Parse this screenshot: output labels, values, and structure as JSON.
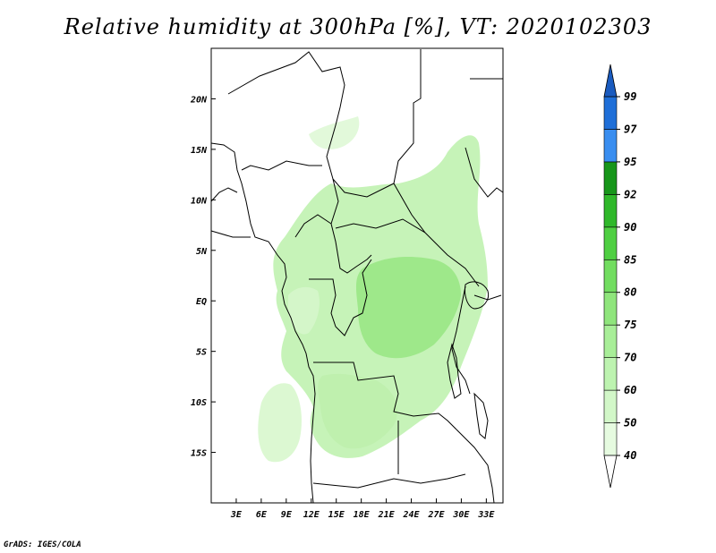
{
  "title": "Relative humidity at 300hPa [%], VT: 2020102303",
  "credit": "GrADS: IGES/COLA",
  "map": {
    "lon_range": [
      0,
      35
    ],
    "lat_range": [
      -20,
      25
    ],
    "lon_ticks": [
      "3E",
      "6E",
      "9E",
      "12E",
      "15E",
      "18E",
      "21E",
      "24E",
      "27E",
      "30E",
      "33E"
    ],
    "lat_ticks": [
      "20N",
      "15N",
      "10N",
      "5N",
      "EQ",
      "5S",
      "10S",
      "15S"
    ],
    "lon_tick_values": [
      3,
      6,
      9,
      12,
      15,
      18,
      21,
      24,
      27,
      30,
      33
    ],
    "lat_tick_values": [
      20,
      15,
      10,
      5,
      0,
      -5,
      -10,
      -15
    ]
  },
  "colorbar": {
    "levels": [
      "40",
      "50",
      "60",
      "70",
      "75",
      "80",
      "85",
      "90",
      "92",
      "95",
      "97",
      "99"
    ],
    "colors": [
      "#ffffff",
      "#e6fbe0",
      "#d2f7c8",
      "#bdf3b0",
      "#a8ee98",
      "#8fe57c",
      "#72dd60",
      "#4fcf42",
      "#2fb82a",
      "#17961a",
      "#3a8ef0",
      "#1f6fd8",
      "#1a5bbf"
    ]
  }
}
